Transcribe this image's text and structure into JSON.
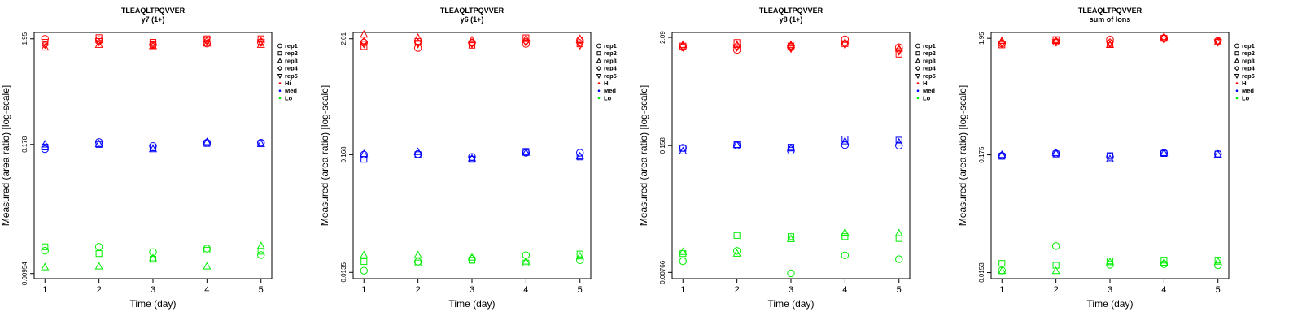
{
  "figure": {
    "type": "scatter",
    "n_panels": 4
  },
  "chart_data": [
    {
      "type": "scatter",
      "title": "TLEAQLTPQVVER",
      "subtitle": "y7 (1+)",
      "xlabel": "Time (day)",
      "ylabel": "Measured (area ratio) [log-scale]",
      "x_ticks": [
        "1",
        "2",
        "3",
        "4",
        "5"
      ],
      "y_tick_values": [
        1.95,
        0.178,
        0.00954
      ],
      "y_tick_labels": [
        "1.95",
        "0.178",
        "0.00954"
      ],
      "xlim": [
        0.8,
        5.2
      ],
      "ylim": [
        0.0085,
        2.25
      ],
      "y_scale": "log",
      "legend": {
        "placement": "right",
        "entries": [
          "rep1",
          "rep2",
          "rep3",
          "rep4",
          "rep5",
          "Hi",
          "Med",
          "Lo"
        ]
      },
      "series": [
        {
          "name": "Hi rep1",
          "level": "Hi",
          "marker": "rep1",
          "x": [
            1,
            2,
            3,
            4,
            5
          ],
          "y": [
            1.95,
            1.9,
            1.7,
            1.75,
            1.8
          ]
        },
        {
          "name": "Hi rep2",
          "level": "Hi",
          "marker": "rep2",
          "x": [
            1,
            2,
            3,
            4,
            5
          ],
          "y": [
            1.8,
            2.0,
            1.8,
            1.95,
            1.95
          ]
        },
        {
          "name": "Hi rep3",
          "level": "Hi",
          "marker": "rep3",
          "x": [
            1,
            2,
            3,
            4,
            5
          ],
          "y": [
            1.6,
            1.7,
            1.65,
            1.75,
            1.7
          ]
        },
        {
          "name": "Hi rep4",
          "level": "Hi",
          "marker": "rep4",
          "x": [
            1,
            2,
            3,
            4,
            5
          ],
          "y": [
            1.7,
            1.8,
            1.7,
            1.85,
            1.85
          ]
        },
        {
          "name": "Hi rep5",
          "level": "Hi",
          "marker": "rep5",
          "x": [
            1,
            2,
            3,
            4,
            5
          ],
          "y": [
            1.75,
            1.85,
            1.75,
            1.9,
            1.8
          ]
        },
        {
          "name": "Med rep1",
          "level": "Med",
          "marker": "rep1",
          "x": [
            1,
            2,
            3,
            4,
            5
          ],
          "y": [
            0.16,
            0.188,
            0.172,
            0.185,
            0.185
          ]
        },
        {
          "name": "Med rep2",
          "level": "Med",
          "marker": "rep2",
          "x": [
            1,
            2,
            3,
            4,
            5
          ],
          "y": [
            0.168,
            0.178,
            0.165,
            0.182,
            0.182
          ]
        },
        {
          "name": "Med rep3",
          "level": "Med",
          "marker": "rep3",
          "x": [
            1,
            2,
            3,
            4,
            5
          ],
          "y": [
            0.178,
            0.18,
            0.16,
            0.188,
            0.18
          ]
        },
        {
          "name": "Lo rep1",
          "level": "Lo",
          "marker": "rep1",
          "x": [
            1,
            2,
            3,
            4,
            5
          ],
          "y": [
            0.016,
            0.0175,
            0.0155,
            0.0168,
            0.0145
          ]
        },
        {
          "name": "Lo rep2",
          "level": "Lo",
          "marker": "rep2",
          "x": [
            1,
            2,
            3,
            4,
            5
          ],
          "y": [
            0.0175,
            0.015,
            0.0132,
            0.0162,
            0.0158
          ]
        },
        {
          "name": "Lo rep3",
          "level": "Lo",
          "marker": "rep3",
          "x": [
            1,
            2,
            3,
            4,
            5
          ],
          "y": [
            0.011,
            0.0112,
            0.0135,
            0.0112,
            0.0178
          ]
        }
      ]
    },
    {
      "type": "scatter",
      "title": "TLEAQLTPQVVER",
      "subtitle": "y6 (1+)",
      "xlabel": "Time (day)",
      "ylabel": "Measured (area ratio) [log-scale]",
      "x_ticks": [
        "1",
        "2",
        "3",
        "4",
        "5"
      ],
      "y_tick_values": [
        2.01,
        0.168,
        0.0135
      ],
      "y_tick_labels": [
        "2.01",
        "0.168",
        "0.0135"
      ],
      "xlim": [
        0.8,
        5.2
      ],
      "ylim": [
        0.0118,
        2.3
      ],
      "y_scale": "log",
      "legend": {
        "placement": "right",
        "entries": [
          "rep1",
          "rep2",
          "rep3",
          "rep4",
          "rep5",
          "Hi",
          "Med",
          "Lo"
        ]
      },
      "series": [
        {
          "name": "Hi rep1",
          "level": "Hi",
          "marker": "rep1",
          "x": [
            1,
            2,
            3,
            4,
            5
          ],
          "y": [
            1.85,
            1.65,
            1.85,
            1.8,
            1.95
          ]
        },
        {
          "name": "Hi rep2",
          "level": "Hi",
          "marker": "rep2",
          "x": [
            1,
            2,
            3,
            4,
            5
          ],
          "y": [
            1.7,
            1.9,
            1.75,
            2.05,
            1.8
          ]
        },
        {
          "name": "Hi rep3",
          "level": "Hi",
          "marker": "rep3",
          "x": [
            1,
            2,
            3,
            4,
            5
          ],
          "y": [
            2.2,
            2.05,
            1.95,
            2.0,
            2.0
          ]
        },
        {
          "name": "Hi rep4",
          "level": "Hi",
          "marker": "rep4",
          "x": [
            1,
            2,
            3,
            4,
            5
          ],
          "y": [
            1.9,
            1.85,
            1.85,
            1.9,
            1.85
          ]
        },
        {
          "name": "Hi rep5",
          "level": "Hi",
          "marker": "rep5",
          "x": [
            1,
            2,
            3,
            4,
            5
          ],
          "y": [
            1.8,
            1.8,
            1.8,
            1.85,
            1.75
          ]
        },
        {
          "name": "Med rep1",
          "level": "Med",
          "marker": "rep1",
          "x": [
            1,
            2,
            3,
            4,
            5
          ],
          "y": [
            0.168,
            0.17,
            0.16,
            0.175,
            0.175
          ]
        },
        {
          "name": "Med rep2",
          "level": "Med",
          "marker": "rep2",
          "x": [
            1,
            2,
            3,
            4,
            5
          ],
          "y": [
            0.152,
            0.168,
            0.152,
            0.18,
            0.16
          ]
        },
        {
          "name": "Med rep3",
          "level": "Med",
          "marker": "rep3",
          "x": [
            1,
            2,
            3,
            4,
            5
          ],
          "y": [
            0.17,
            0.178,
            0.155,
            0.175,
            0.162
          ]
        },
        {
          "name": "Lo rep1",
          "level": "Lo",
          "marker": "rep1",
          "x": [
            1,
            2,
            3,
            4,
            5
          ],
          "y": [
            0.014,
            0.017,
            0.018,
            0.0195,
            0.0175
          ]
        },
        {
          "name": "Lo rep2",
          "level": "Lo",
          "marker": "rep2",
          "x": [
            1,
            2,
            3,
            4,
            5
          ],
          "y": [
            0.017,
            0.0165,
            0.0175,
            0.0165,
            0.02
          ]
        },
        {
          "name": "Lo rep3",
          "level": "Lo",
          "marker": "rep3",
          "x": [
            1,
            2,
            3,
            4,
            5
          ],
          "y": [
            0.0195,
            0.0195,
            0.0185,
            0.017,
            0.019
          ]
        }
      ]
    },
    {
      "type": "scatter",
      "title": "TLEAQLTPQVVER",
      "subtitle": "y8 (1+)",
      "xlabel": "Time (day)",
      "ylabel": "Measured (area ratio) [log-scale]",
      "x_ticks": [
        "1",
        "2",
        "3",
        "4",
        "5"
      ],
      "y_tick_values": [
        2.09,
        0.158,
        0.00766
      ],
      "y_tick_labels": [
        "2.09",
        "0.158",
        "0.00766"
      ],
      "xlim": [
        0.8,
        5.2
      ],
      "ylim": [
        0.0066,
        2.35
      ],
      "y_scale": "log",
      "legend": {
        "placement": "right",
        "entries": [
          "rep1",
          "rep2",
          "rep3",
          "rep4",
          "rep5",
          "Hi",
          "Med",
          "Lo"
        ]
      },
      "series": [
        {
          "name": "Hi rep1",
          "level": "Hi",
          "marker": "rep1",
          "x": [
            1,
            2,
            3,
            4,
            5
          ],
          "y": [
            1.65,
            1.55,
            1.65,
            2.0,
            1.65
          ]
        },
        {
          "name": "Hi rep2",
          "level": "Hi",
          "marker": "rep2",
          "x": [
            1,
            2,
            3,
            4,
            5
          ],
          "y": [
            1.7,
            1.85,
            1.7,
            1.8,
            1.4
          ]
        },
        {
          "name": "Hi rep3",
          "level": "Hi",
          "marker": "rep3",
          "x": [
            1,
            2,
            3,
            4,
            5
          ],
          "y": [
            1.75,
            1.75,
            1.75,
            1.85,
            1.6
          ]
        },
        {
          "name": "Hi rep4",
          "level": "Hi",
          "marker": "rep4",
          "x": [
            1,
            2,
            3,
            4,
            5
          ],
          "y": [
            1.7,
            1.7,
            1.7,
            1.8,
            1.55
          ]
        },
        {
          "name": "Hi rep5",
          "level": "Hi",
          "marker": "rep5",
          "x": [
            1,
            2,
            3,
            4,
            5
          ],
          "y": [
            1.65,
            1.65,
            1.6,
            1.75,
            1.5
          ]
        },
        {
          "name": "Med rep1",
          "level": "Med",
          "marker": "rep1",
          "x": [
            1,
            2,
            3,
            4,
            5
          ],
          "y": [
            0.15,
            0.158,
            0.14,
            0.16,
            0.158
          ]
        },
        {
          "name": "Med rep2",
          "level": "Med",
          "marker": "rep2",
          "x": [
            1,
            2,
            3,
            4,
            5
          ],
          "y": [
            0.148,
            0.162,
            0.152,
            0.185,
            0.18
          ]
        },
        {
          "name": "Med rep3",
          "level": "Med",
          "marker": "rep3",
          "x": [
            1,
            2,
            3,
            4,
            5
          ],
          "y": [
            0.138,
            0.16,
            0.148,
            0.175,
            0.17
          ]
        },
        {
          "name": "Lo rep1",
          "level": "Lo",
          "marker": "rep1",
          "x": [
            1,
            2,
            3,
            4,
            5
          ],
          "y": [
            0.01,
            0.0128,
            0.0075,
            0.0115,
            0.0105
          ]
        },
        {
          "name": "Lo rep2",
          "level": "Lo",
          "marker": "rep2",
          "x": [
            1,
            2,
            3,
            4,
            5
          ],
          "y": [
            0.012,
            0.0185,
            0.018,
            0.018,
            0.0172
          ]
        },
        {
          "name": "Lo rep3",
          "level": "Lo",
          "marker": "rep3",
          "x": [
            1,
            2,
            3,
            4,
            5
          ],
          "y": [
            0.0125,
            0.012,
            0.017,
            0.0198,
            0.0195
          ]
        }
      ]
    },
    {
      "type": "scatter",
      "title": "TLEAQLTPQVVER",
      "subtitle": "sum of Ions",
      "xlabel": "Time (day)",
      "ylabel": "Measured (area ratio) [log-scale]",
      "x_ticks": [
        "1",
        "2",
        "3",
        "4",
        "5"
      ],
      "y_tick_values": [
        1.95,
        0.175,
        0.0153
      ],
      "y_tick_labels": [
        "1.95",
        "0.175",
        "0.0153"
      ],
      "xlim": [
        0.8,
        5.2
      ],
      "ylim": [
        0.0135,
        2.2
      ],
      "y_scale": "log",
      "legend": {
        "placement": "right",
        "entries": [
          "rep1",
          "rep2",
          "rep3",
          "rep4",
          "rep5",
          "Hi",
          "Med",
          "Lo"
        ]
      },
      "series": [
        {
          "name": "Hi rep1",
          "level": "Hi",
          "marker": "rep1",
          "x": [
            1,
            2,
            3,
            4,
            5
          ],
          "y": [
            1.75,
            1.8,
            1.9,
            1.95,
            1.85
          ]
        },
        {
          "name": "Hi rep2",
          "level": "Hi",
          "marker": "rep2",
          "x": [
            1,
            2,
            3,
            4,
            5
          ],
          "y": [
            1.7,
            1.9,
            1.75,
            1.95,
            1.8
          ]
        },
        {
          "name": "Hi rep3",
          "level": "Hi",
          "marker": "rep3",
          "x": [
            1,
            2,
            3,
            4,
            5
          ],
          "y": [
            1.85,
            1.85,
            1.7,
            2.0,
            1.8
          ]
        },
        {
          "name": "Hi rep4",
          "level": "Hi",
          "marker": "rep4",
          "x": [
            1,
            2,
            3,
            4,
            5
          ],
          "y": [
            1.8,
            1.85,
            1.8,
            2.0,
            1.85
          ]
        },
        {
          "name": "Hi rep5",
          "level": "Hi",
          "marker": "rep5",
          "x": [
            1,
            2,
            3,
            4,
            5
          ],
          "y": [
            1.75,
            1.8,
            1.75,
            1.9,
            1.8
          ]
        },
        {
          "name": "Med rep1",
          "level": "Med",
          "marker": "rep1",
          "x": [
            1,
            2,
            3,
            4,
            5
          ],
          "y": [
            0.172,
            0.18,
            0.168,
            0.182,
            0.178
          ]
        },
        {
          "name": "Med rep2",
          "level": "Med",
          "marker": "rep2",
          "x": [
            1,
            2,
            3,
            4,
            5
          ],
          "y": [
            0.17,
            0.178,
            0.172,
            0.18,
            0.178
          ]
        },
        {
          "name": "Med rep3",
          "level": "Med",
          "marker": "rep3",
          "x": [
            1,
            2,
            3,
            4,
            5
          ],
          "y": [
            0.175,
            0.182,
            0.16,
            0.182,
            0.176
          ]
        },
        {
          "name": "Lo rep1",
          "level": "Lo",
          "marker": "rep1",
          "x": [
            1,
            2,
            3,
            4,
            5
          ],
          "y": [
            0.016,
            0.0265,
            0.018,
            0.0182,
            0.0178
          ]
        },
        {
          "name": "Lo rep2",
          "level": "Lo",
          "marker": "rep2",
          "x": [
            1,
            2,
            3,
            4,
            5
          ],
          "y": [
            0.0185,
            0.0178,
            0.0195,
            0.0198,
            0.0198
          ]
        },
        {
          "name": "Lo rep3",
          "level": "Lo",
          "marker": "rep3",
          "x": [
            1,
            2,
            3,
            4,
            5
          ],
          "y": [
            0.0158,
            0.0158,
            0.019,
            0.0188,
            0.0192
          ]
        }
      ]
    }
  ],
  "colors": {
    "Hi": "#ff0000",
    "Med": "#0000ff",
    "Lo": "#00ee00",
    "axis": "#000000"
  },
  "legend_symbols": {
    "rep1": "circle",
    "rep2": "square",
    "rep3": "triangle",
    "rep4": "diamond",
    "rep5": "triangle-down"
  }
}
